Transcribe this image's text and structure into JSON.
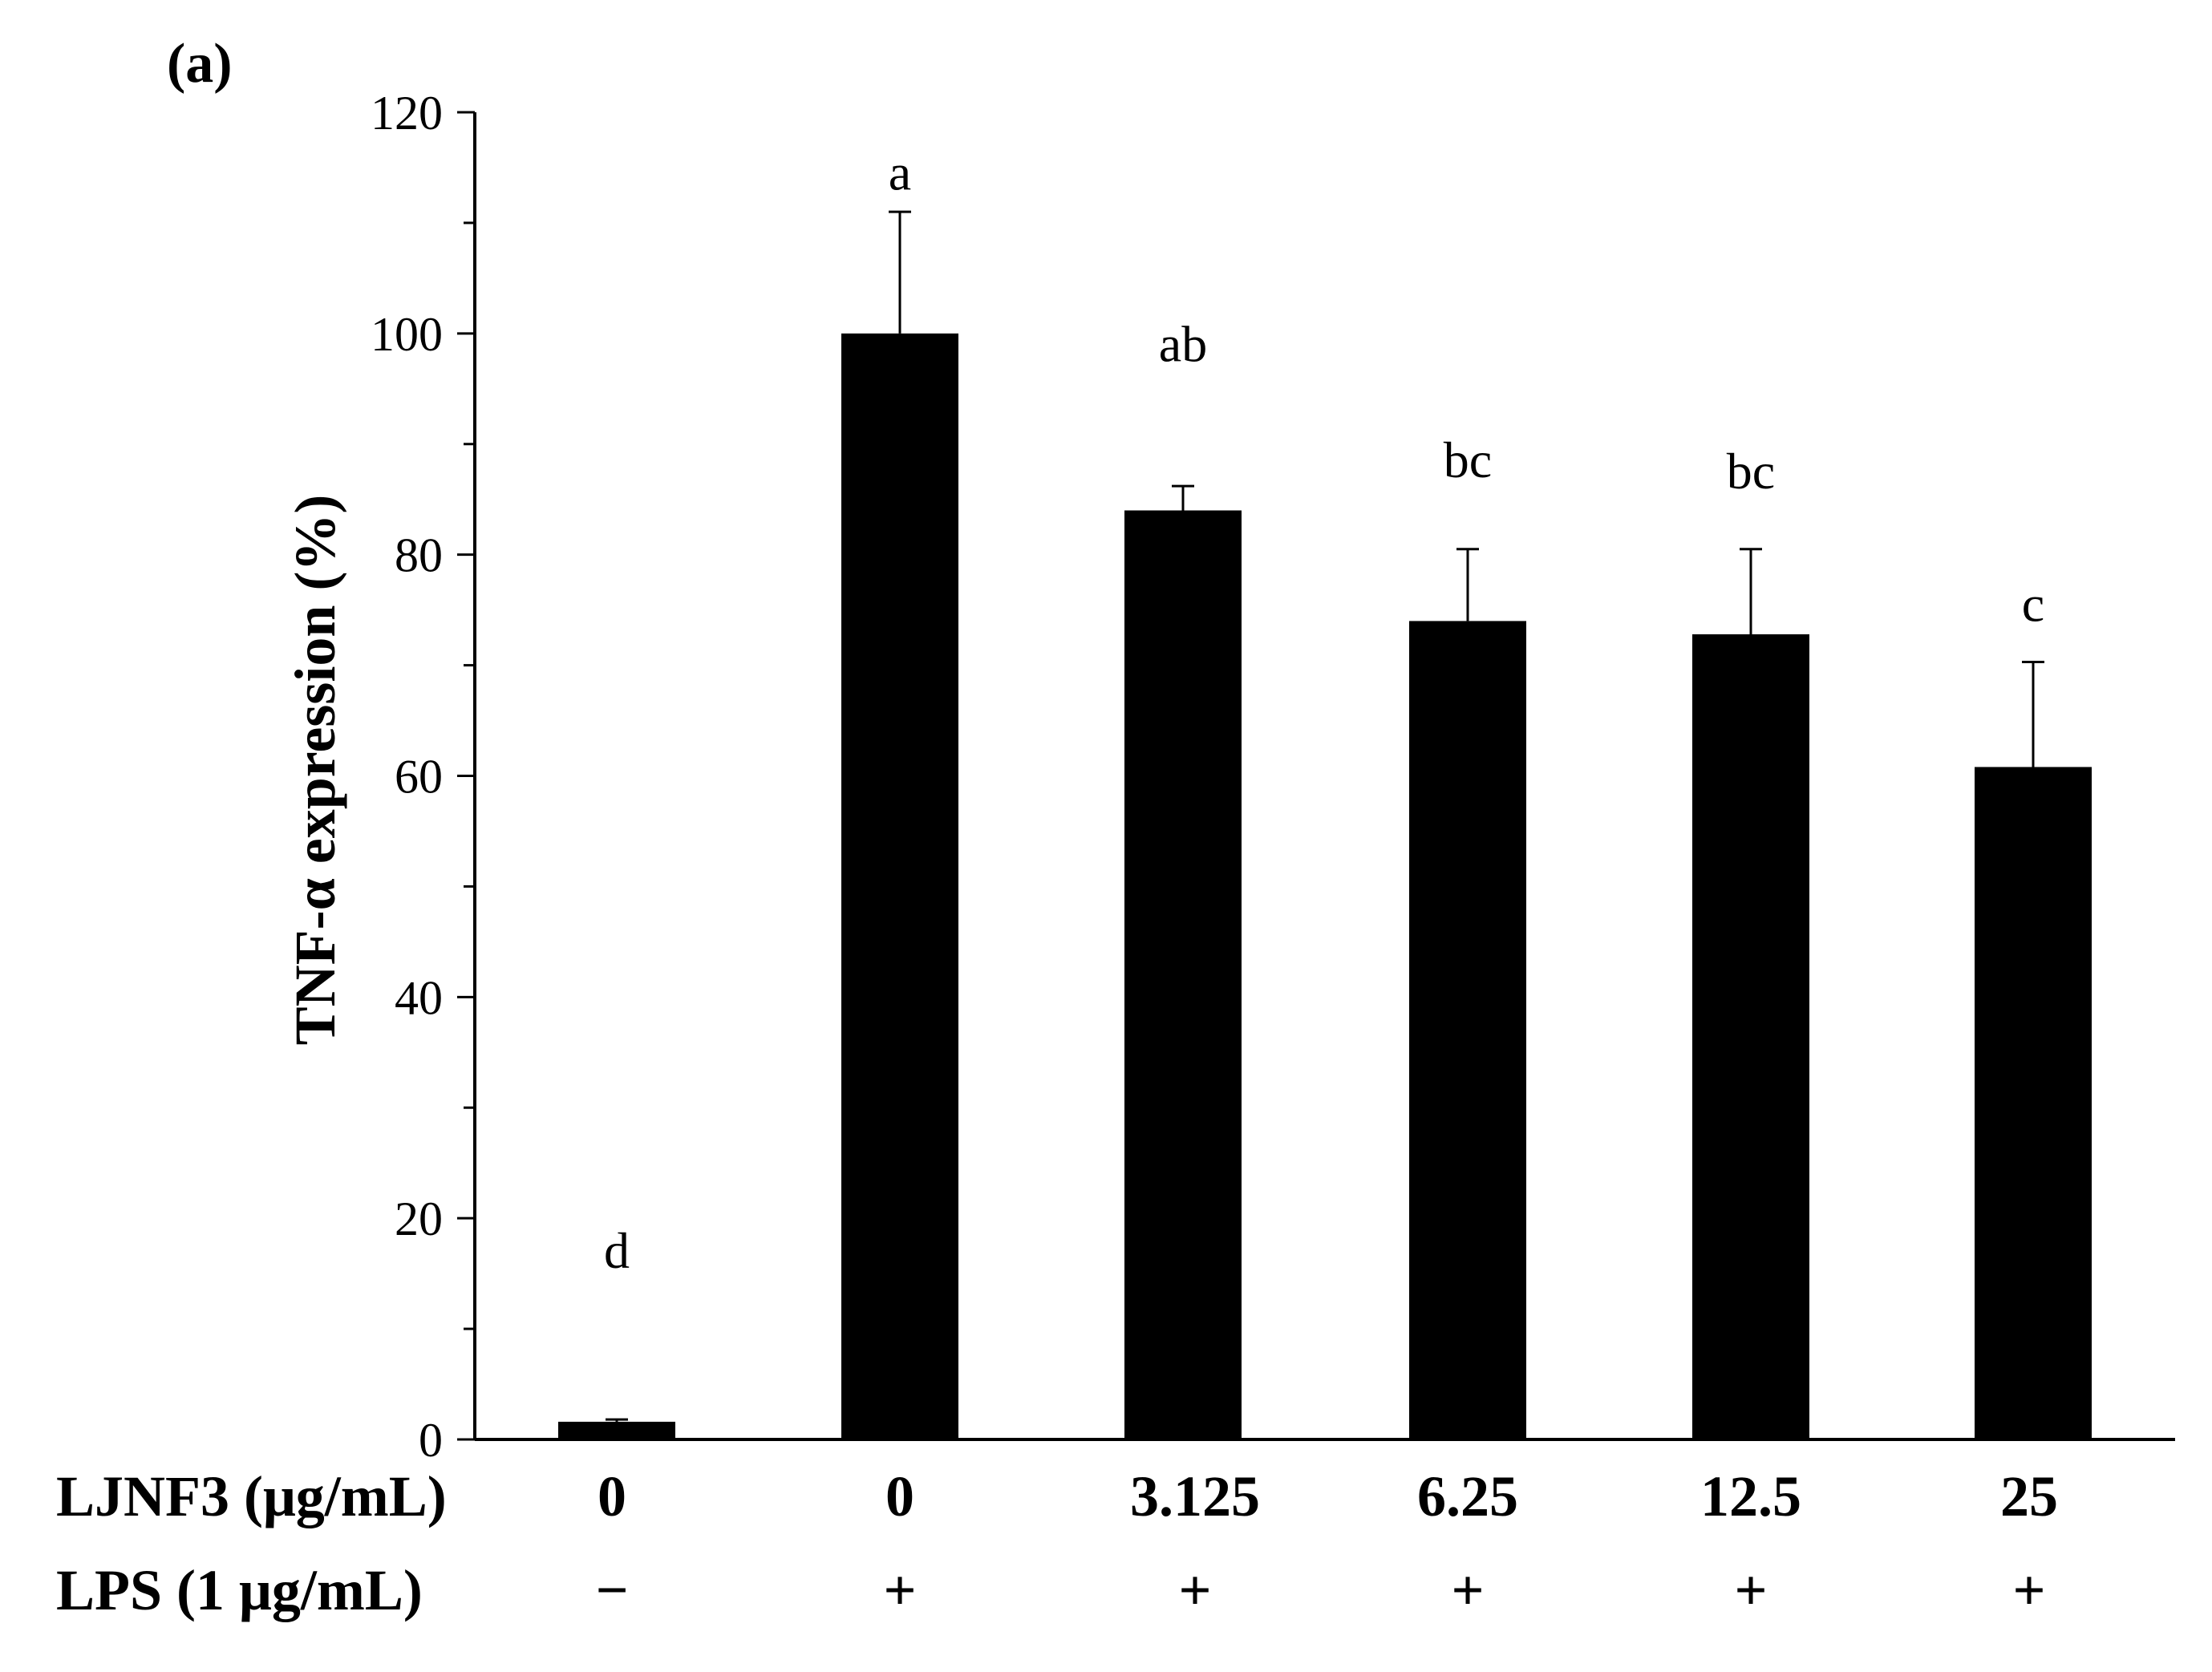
{
  "chart_data": {
    "type": "bar",
    "panel_label": "(a)",
    "ylabel": "TNF-α expression (%)",
    "xlabel": "",
    "ylim": [
      0,
      120
    ],
    "yticks": [
      0,
      20,
      40,
      60,
      80,
      100,
      120
    ],
    "legend": "none",
    "grid": false,
    "categories": [
      "0",
      "0",
      "3.125",
      "6.25",
      "12.5",
      "25"
    ],
    "values": [
      1.6,
      100,
      84,
      74,
      72.8,
      60.8
    ],
    "error_upper": [
      1.8,
      111,
      86.2,
      80.5,
      80.5,
      70.3
    ],
    "significance": [
      "d",
      "a",
      "ab",
      "bc",
      "bc",
      "c"
    ],
    "significance_y": [
      15.5,
      113,
      97.5,
      87,
      86,
      74
    ],
    "rows": [
      {
        "title": "LJNF3 (μg/mL)",
        "values": [
          "0",
          "0",
          "3.125",
          "6.25",
          "12.5",
          "25"
        ]
      },
      {
        "title": "LPS (1 μg/mL)",
        "values": [
          "−",
          "+",
          "+",
          "+",
          "+",
          "+"
        ]
      }
    ],
    "bar_color": "#000000"
  }
}
